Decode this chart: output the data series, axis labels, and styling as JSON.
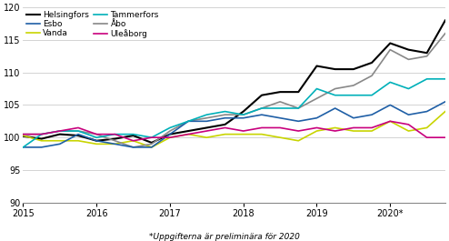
{
  "title": "",
  "footnote": "*Uppgifterna är preliminära för 2020",
  "xlabel": "",
  "ylim": [
    90,
    120
  ],
  "yticks": [
    90,
    95,
    100,
    105,
    110,
    115,
    120
  ],
  "xlim": [
    0,
    23
  ],
  "xtick_positions": [
    0,
    4,
    8,
    12,
    16,
    20
  ],
  "xtick_labels": [
    "2015",
    "2016",
    "2017",
    "2018",
    "2019",
    "2020*"
  ],
  "series": {
    "Helsingfors": {
      "color": "#000000",
      "values": [
        100.2,
        99.8,
        100.5,
        100.3,
        99.5,
        99.8,
        100.3,
        99.2,
        100.5,
        101.0,
        101.5,
        102.0,
        104.0,
        106.5,
        107.0,
        107.0,
        111.0,
        110.5,
        110.5,
        111.5,
        114.5,
        113.5,
        113.0,
        118.0
      ]
    },
    "Vanda": {
      "color": "#c8d400",
      "values": [
        100.3,
        99.5,
        99.5,
        99.5,
        99.0,
        99.0,
        99.5,
        98.5,
        100.0,
        100.5,
        100.0,
        100.5,
        100.5,
        100.5,
        100.0,
        99.5,
        101.0,
        101.5,
        101.0,
        101.0,
        102.5,
        101.0,
        101.5,
        104.0
      ]
    },
    "Åbo": {
      "color": "#888888",
      "values": [
        100.5,
        100.5,
        101.0,
        101.0,
        100.5,
        99.5,
        98.5,
        99.0,
        101.0,
        102.5,
        103.0,
        103.5,
        103.5,
        104.5,
        105.5,
        104.5,
        106.0,
        107.5,
        108.0,
        109.5,
        113.5,
        112.0,
        112.5,
        116.0
      ]
    },
    "Esbo": {
      "color": "#1f5fa6",
      "values": [
        98.5,
        98.5,
        99.0,
        100.5,
        99.5,
        99.0,
        98.5,
        98.5,
        100.5,
        102.5,
        102.5,
        103.0,
        103.0,
        103.5,
        103.0,
        102.5,
        103.0,
        104.5,
        103.0,
        103.5,
        105.0,
        103.5,
        104.0,
        105.5
      ]
    },
    "Tammerfors": {
      "color": "#00b0b9",
      "values": [
        98.5,
        100.5,
        101.0,
        101.0,
        100.0,
        100.5,
        100.5,
        100.0,
        101.5,
        102.5,
        103.5,
        104.0,
        103.5,
        104.5,
        104.5,
        104.5,
        107.5,
        106.5,
        106.5,
        106.5,
        108.5,
        107.5,
        109.0,
        109.0
      ]
    },
    "Uleåborg": {
      "color": "#c8007d",
      "values": [
        100.5,
        100.5,
        101.0,
        101.5,
        100.5,
        100.5,
        99.5,
        100.0,
        100.0,
        100.5,
        101.0,
        101.5,
        101.0,
        101.5,
        101.5,
        101.0,
        101.5,
        101.0,
        101.5,
        101.5,
        102.5,
        102.0,
        100.0,
        100.0
      ]
    }
  },
  "legend_col1": [
    "Helsingfors",
    "Vanda",
    "Åbo"
  ],
  "legend_col2": [
    "Esbo",
    "Tammerfors",
    "Uleåborg"
  ],
  "background_color": "#ffffff",
  "grid_color": "#cccccc"
}
